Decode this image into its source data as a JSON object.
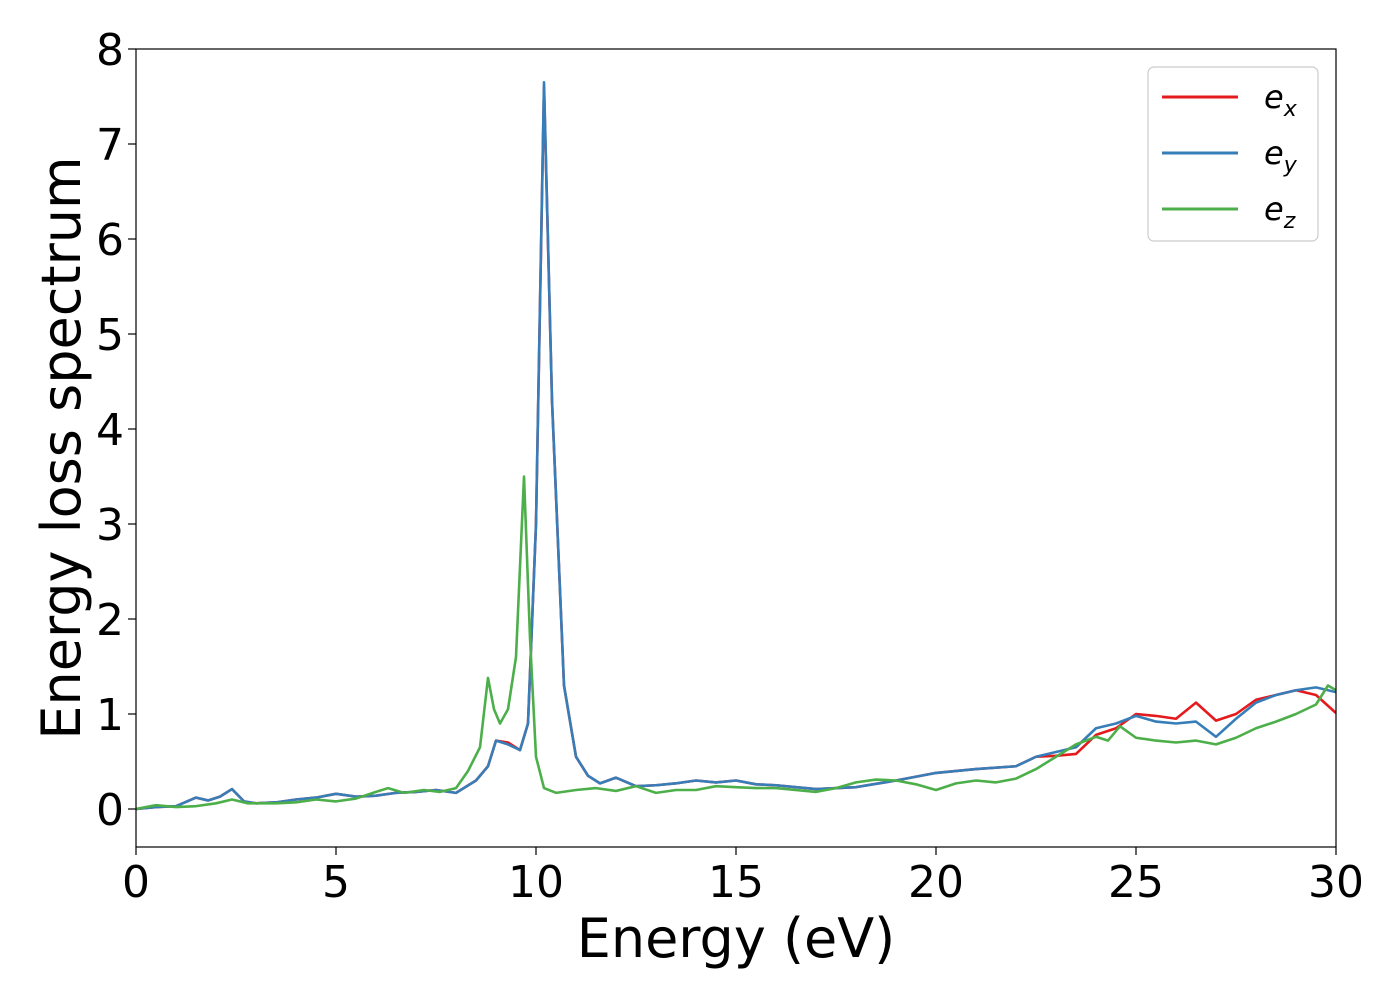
{
  "chart_data": {
    "type": "line",
    "title": "",
    "xlabel": "Energy (eV)",
    "ylabel": "Energy loss spectrum",
    "xlim": [
      0,
      30
    ],
    "ylim": [
      -0.4,
      8.0
    ],
    "xticks": [
      0,
      5,
      10,
      15,
      20,
      25,
      30
    ],
    "yticks": [
      0,
      1,
      2,
      3,
      4,
      5,
      6,
      7,
      8
    ],
    "grid": false,
    "legend_position": "top-right",
    "series": [
      {
        "name": "e",
        "subscript": "x",
        "color": "#e41a1c",
        "points": [
          [
            0,
            0.0
          ],
          [
            0.5,
            0.02
          ],
          [
            1.0,
            0.03
          ],
          [
            1.5,
            0.12
          ],
          [
            1.8,
            0.09
          ],
          [
            2.1,
            0.13
          ],
          [
            2.4,
            0.21
          ],
          [
            2.7,
            0.08
          ],
          [
            3.0,
            0.06
          ],
          [
            3.5,
            0.07
          ],
          [
            4.0,
            0.1
          ],
          [
            4.5,
            0.12
          ],
          [
            5.0,
            0.16
          ],
          [
            5.5,
            0.13
          ],
          [
            6.0,
            0.14
          ],
          [
            6.5,
            0.17
          ],
          [
            7.0,
            0.18
          ],
          [
            7.5,
            0.2
          ],
          [
            8.0,
            0.17
          ],
          [
            8.5,
            0.3
          ],
          [
            8.8,
            0.45
          ],
          [
            9.0,
            0.72
          ],
          [
            9.3,
            0.7
          ],
          [
            9.6,
            0.62
          ],
          [
            9.8,
            0.9
          ],
          [
            10.0,
            3.0
          ],
          [
            10.2,
            7.6
          ],
          [
            10.4,
            4.3
          ],
          [
            10.7,
            1.3
          ],
          [
            11.0,
            0.55
          ],
          [
            11.3,
            0.35
          ],
          [
            11.6,
            0.27
          ],
          [
            12.0,
            0.33
          ],
          [
            12.5,
            0.24
          ],
          [
            13.0,
            0.25
          ],
          [
            13.5,
            0.27
          ],
          [
            14.0,
            0.3
          ],
          [
            14.5,
            0.28
          ],
          [
            15.0,
            0.3
          ],
          [
            15.5,
            0.26
          ],
          [
            16.0,
            0.25
          ],
          [
            17.0,
            0.21
          ],
          [
            18.0,
            0.23
          ],
          [
            19.0,
            0.3
          ],
          [
            20.0,
            0.38
          ],
          [
            21.0,
            0.42
          ],
          [
            22.0,
            0.45
          ],
          [
            22.5,
            0.55
          ],
          [
            23.0,
            0.56
          ],
          [
            23.5,
            0.58
          ],
          [
            24.0,
            0.78
          ],
          [
            24.5,
            0.85
          ],
          [
            25.0,
            1.0
          ],
          [
            25.5,
            0.98
          ],
          [
            26.0,
            0.95
          ],
          [
            26.5,
            1.12
          ],
          [
            27.0,
            0.93
          ],
          [
            27.5,
            1.0
          ],
          [
            28.0,
            1.15
          ],
          [
            28.5,
            1.2
          ],
          [
            29.0,
            1.25
          ],
          [
            29.5,
            1.2
          ],
          [
            30.0,
            1.01
          ]
        ]
      },
      {
        "name": "e",
        "subscript": "y",
        "color": "#377eb8",
        "points": [
          [
            0,
            0.0
          ],
          [
            0.5,
            0.02
          ],
          [
            1.0,
            0.03
          ],
          [
            1.5,
            0.12
          ],
          [
            1.8,
            0.09
          ],
          [
            2.1,
            0.13
          ],
          [
            2.4,
            0.21
          ],
          [
            2.7,
            0.08
          ],
          [
            3.0,
            0.06
          ],
          [
            3.5,
            0.07
          ],
          [
            4.0,
            0.1
          ],
          [
            4.5,
            0.12
          ],
          [
            5.0,
            0.16
          ],
          [
            5.5,
            0.13
          ],
          [
            6.0,
            0.14
          ],
          [
            6.5,
            0.17
          ],
          [
            7.0,
            0.18
          ],
          [
            7.5,
            0.2
          ],
          [
            8.0,
            0.17
          ],
          [
            8.5,
            0.3
          ],
          [
            8.8,
            0.45
          ],
          [
            9.0,
            0.72
          ],
          [
            9.3,
            0.68
          ],
          [
            9.6,
            0.62
          ],
          [
            9.8,
            0.9
          ],
          [
            10.0,
            3.0
          ],
          [
            10.2,
            7.65
          ],
          [
            10.4,
            4.3
          ],
          [
            10.7,
            1.3
          ],
          [
            11.0,
            0.55
          ],
          [
            11.3,
            0.35
          ],
          [
            11.6,
            0.27
          ],
          [
            12.0,
            0.33
          ],
          [
            12.5,
            0.24
          ],
          [
            13.0,
            0.25
          ],
          [
            13.5,
            0.27
          ],
          [
            14.0,
            0.3
          ],
          [
            14.5,
            0.28
          ],
          [
            15.0,
            0.3
          ],
          [
            15.5,
            0.26
          ],
          [
            16.0,
            0.25
          ],
          [
            17.0,
            0.21
          ],
          [
            18.0,
            0.23
          ],
          [
            19.0,
            0.3
          ],
          [
            20.0,
            0.38
          ],
          [
            21.0,
            0.42
          ],
          [
            22.0,
            0.45
          ],
          [
            22.5,
            0.55
          ],
          [
            23.0,
            0.6
          ],
          [
            23.5,
            0.65
          ],
          [
            24.0,
            0.85
          ],
          [
            24.5,
            0.9
          ],
          [
            25.0,
            0.98
          ],
          [
            25.5,
            0.92
          ],
          [
            26.0,
            0.9
          ],
          [
            26.5,
            0.92
          ],
          [
            27.0,
            0.76
          ],
          [
            27.5,
            0.95
          ],
          [
            28.0,
            1.12
          ],
          [
            28.5,
            1.2
          ],
          [
            29.0,
            1.25
          ],
          [
            29.5,
            1.28
          ],
          [
            30.0,
            1.23
          ]
        ]
      },
      {
        "name": "e",
        "subscript": "z",
        "color": "#4daf4a",
        "points": [
          [
            0,
            0.0
          ],
          [
            0.5,
            0.04
          ],
          [
            1.0,
            0.02
          ],
          [
            1.5,
            0.03
          ],
          [
            2.0,
            0.06
          ],
          [
            2.4,
            0.1
          ],
          [
            2.8,
            0.06
          ],
          [
            3.5,
            0.06
          ],
          [
            4.0,
            0.07
          ],
          [
            4.5,
            0.1
          ],
          [
            5.0,
            0.08
          ],
          [
            5.5,
            0.11
          ],
          [
            6.0,
            0.18
          ],
          [
            6.3,
            0.22
          ],
          [
            6.7,
            0.17
          ],
          [
            7.2,
            0.2
          ],
          [
            7.6,
            0.18
          ],
          [
            8.0,
            0.22
          ],
          [
            8.3,
            0.4
          ],
          [
            8.6,
            0.65
          ],
          [
            8.8,
            1.38
          ],
          [
            8.95,
            1.05
          ],
          [
            9.1,
            0.9
          ],
          [
            9.3,
            1.05
          ],
          [
            9.5,
            1.6
          ],
          [
            9.7,
            3.5
          ],
          [
            9.85,
            1.8
          ],
          [
            10.0,
            0.55
          ],
          [
            10.2,
            0.22
          ],
          [
            10.5,
            0.17
          ],
          [
            11.0,
            0.2
          ],
          [
            11.5,
            0.22
          ],
          [
            12.0,
            0.19
          ],
          [
            12.5,
            0.24
          ],
          [
            13.0,
            0.17
          ],
          [
            13.5,
            0.2
          ],
          [
            14.0,
            0.2
          ],
          [
            14.5,
            0.24
          ],
          [
            15.0,
            0.23
          ],
          [
            15.5,
            0.22
          ],
          [
            16.0,
            0.22
          ],
          [
            17.0,
            0.18
          ],
          [
            17.5,
            0.22
          ],
          [
            18.0,
            0.28
          ],
          [
            18.5,
            0.31
          ],
          [
            19.0,
            0.3
          ],
          [
            19.5,
            0.26
          ],
          [
            20.0,
            0.2
          ],
          [
            20.5,
            0.27
          ],
          [
            21.0,
            0.3
          ],
          [
            21.5,
            0.28
          ],
          [
            22.0,
            0.32
          ],
          [
            22.5,
            0.42
          ],
          [
            23.0,
            0.55
          ],
          [
            23.5,
            0.68
          ],
          [
            24.0,
            0.76
          ],
          [
            24.3,
            0.72
          ],
          [
            24.6,
            0.87
          ],
          [
            25.0,
            0.75
          ],
          [
            25.5,
            0.72
          ],
          [
            26.0,
            0.7
          ],
          [
            26.5,
            0.72
          ],
          [
            27.0,
            0.68
          ],
          [
            27.5,
            0.75
          ],
          [
            28.0,
            0.85
          ],
          [
            28.5,
            0.92
          ],
          [
            29.0,
            1.0
          ],
          [
            29.5,
            1.1
          ],
          [
            29.8,
            1.3
          ],
          [
            30.0,
            1.25
          ]
        ]
      }
    ]
  }
}
